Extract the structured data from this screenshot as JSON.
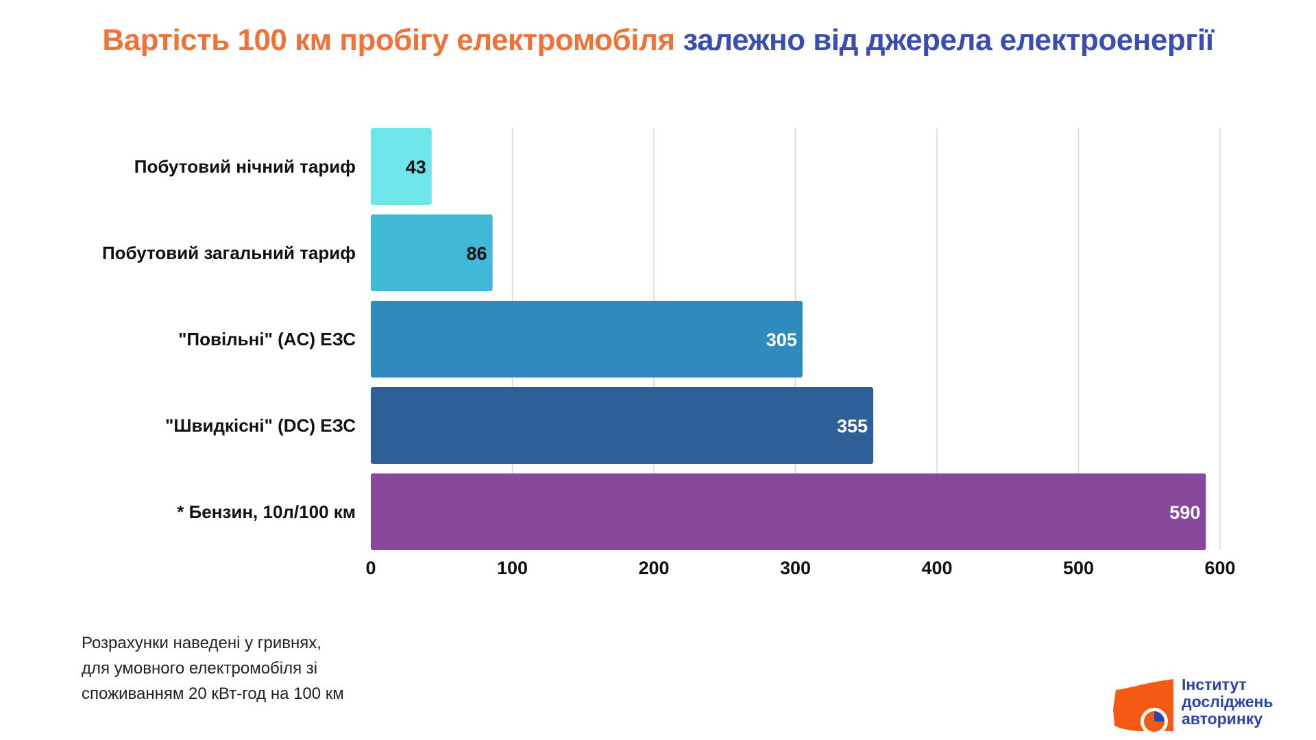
{
  "title": {
    "part1": "Вартість 100 км пробігу електромобіля",
    "part2": "залежно від джерела електроенергії",
    "color1": "#f07236",
    "color2": "#3a4db3"
  },
  "chart_data": {
    "type": "bar",
    "orientation": "horizontal",
    "categories": [
      "Побутовий нічний тариф",
      "Побутовий загальний тариф",
      "\"Повільні\" (AC) ЕЗС",
      "\"Швидкісні\" (DC) ЕЗС",
      "* Бензин, 10л/100 км"
    ],
    "values": [
      43,
      86,
      305,
      355,
      590
    ],
    "data_labels": [
      "43",
      "86",
      "305",
      "355",
      "590"
    ],
    "colors": [
      "#6ee5e8",
      "#41b8d7",
      "#2d8bbd",
      "#2e5f99",
      "#87489b"
    ],
    "xlim": [
      0,
      600
    ],
    "xticks": [
      "0",
      "100",
      "200",
      "300",
      "400",
      "500",
      "600"
    ],
    "grid": true,
    "title": "",
    "xlabel": "",
    "ylabel": ""
  },
  "footnote": [
    "Розрахунки наведені у гривнях,",
    "для умовного електромобіля зі",
    "споживанням 20 кВт-год на 100 км"
  ],
  "logo": {
    "lines": [
      "Інститут",
      "досліджень",
      "авторинку"
    ]
  }
}
